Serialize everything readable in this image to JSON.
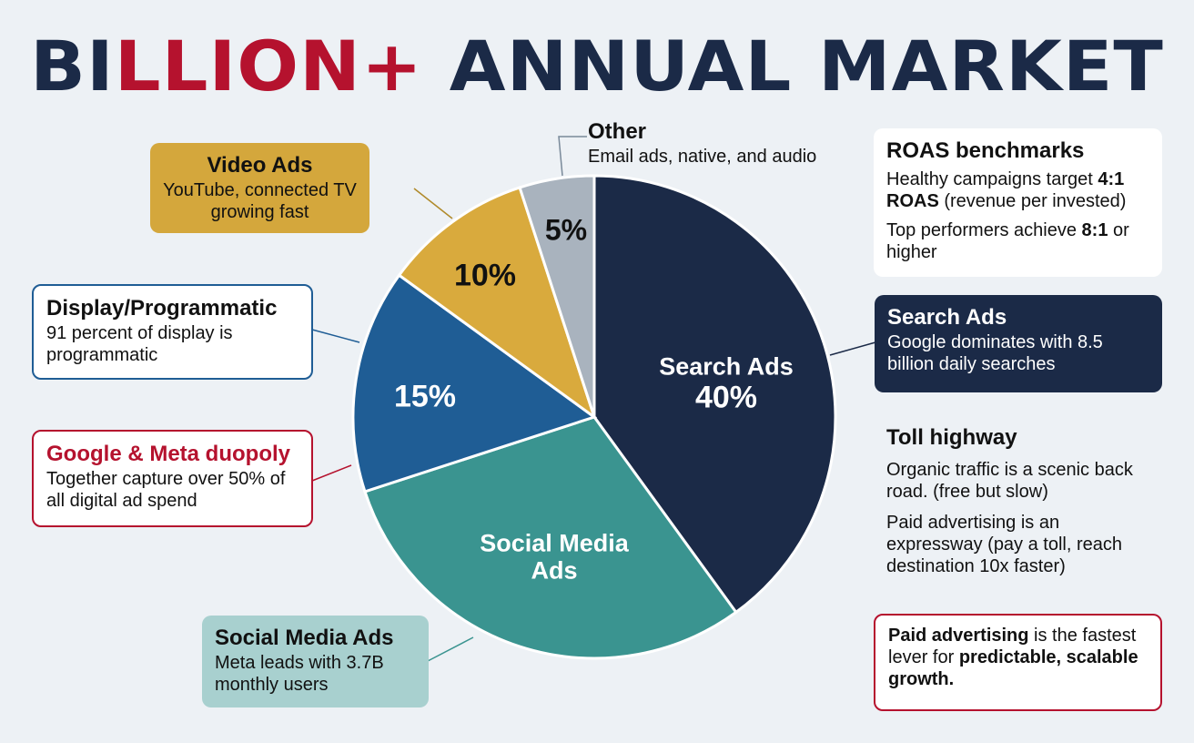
{
  "title": {
    "part1": "BI",
    "part2": "LLION+",
    "part3": " ANNUAL MARKET"
  },
  "chart_data": {
    "type": "pie",
    "start": "top",
    "direction": "clockwise",
    "slices": [
      {
        "name": "Search Ads",
        "value": 40,
        "label": "40%",
        "color": "#1b2a47"
      },
      {
        "name": "Social Media Ads",
        "value": 30,
        "label": "",
        "color": "#3a9490"
      },
      {
        "name": "Display/Programmatic",
        "value": 15,
        "label": "15%",
        "color": "#1f5d95"
      },
      {
        "name": "Video Ads",
        "value": 10,
        "label": "10%",
        "color": "#d9aa3d"
      },
      {
        "name": "Other",
        "value": 5,
        "label": "5%",
        "color": "#a9b3be"
      }
    ]
  },
  "slice_labels": {
    "search_name": "Search Ads",
    "search_pct": "40%",
    "social_name": "Social Media Ads",
    "display_pct": "15%",
    "video_pct": "10%",
    "other_pct": "5%"
  },
  "callouts": {
    "other": {
      "title": "Other",
      "text": "Email ads, native, and audio"
    },
    "video": {
      "title": "Video Ads",
      "text": "YouTube, connected TV growing fast"
    },
    "display": {
      "title": "Display/Programmatic",
      "text": "91 percent of display is programmatic"
    },
    "duopoly": {
      "title": "Google & Meta duopoly",
      "text": "Together capture over 50% of all digital ad spend"
    },
    "social": {
      "title": "Social Media Ads",
      "text": "Meta leads with 3.7B monthly users"
    },
    "search": {
      "title": "Search Ads",
      "text": "Google dominates with 8.5 billion daily searches"
    }
  },
  "roas": {
    "title": "ROAS benchmarks",
    "l1a": "Healthy campaigns target ",
    "l1b": "4:1 ROAS",
    "l1c": " (revenue per invested)",
    "l2a": "Top performers achieve ",
    "l2b": "8:1",
    "l2c": " or higher"
  },
  "toll": {
    "title": "Toll highway",
    "p1": "Organic traffic is a scenic back road. (free but slow)",
    "p2": "Paid advertising is an expressway (pay a toll, reach destination 10x faster)"
  },
  "summary": {
    "a": "Paid advertising",
    "b": " is the fastest lever for ",
    "c": "predictable, scalable growth."
  }
}
